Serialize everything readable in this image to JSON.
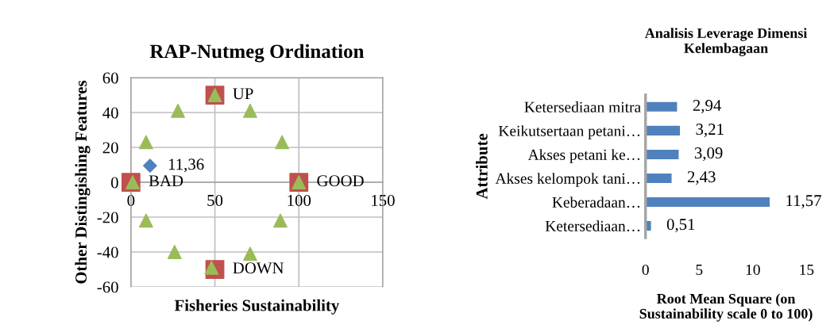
{
  "chart_data": [
    {
      "type": "scatter",
      "title": "RAP-Nutmeg Ordination",
      "xlabel": "Fisheries Sustainability",
      "ylabel": "Other Distingishing Features",
      "xlim": [
        0,
        150
      ],
      "xticks": [
        0,
        50,
        100,
        150
      ],
      "ylim": [
        -60,
        60
      ],
      "yticks": [
        -60,
        -40,
        -20,
        0,
        20,
        40,
        60
      ],
      "grid": true,
      "series": [
        {
          "color": "#c0504d",
          "marker": "square",
          "x": [
            0,
            100,
            50,
            50
          ],
          "values": [
            0,
            0,
            50,
            -50
          ]
        },
        {
          "color": "#9bbb59",
          "marker": "triangle",
          "x": [
            50,
            71,
            90,
            100,
            89,
            71,
            48,
            26,
            9,
            1,
            9,
            28
          ],
          "values": [
            50,
            41,
            23,
            0,
            -22,
            -41,
            -49,
            -40,
            -22,
            0,
            23,
            41
          ]
        },
        {
          "color": "#4f81bd",
          "marker": "diamond",
          "x": [
            11.36
          ],
          "values": [
            9.5
          ]
        }
      ],
      "annotations": [
        {
          "text": "11,36",
          "x": 11.36,
          "y": 9.5
        },
        {
          "text": "UP",
          "x": 50,
          "y": 50
        },
        {
          "text": "GOOD",
          "x": 100,
          "y": 0
        },
        {
          "text": "DOWN",
          "x": 50,
          "y": -50
        },
        {
          "text": "BAD",
          "x": 0,
          "y": 0
        }
      ]
    },
    {
      "type": "bar",
      "orientation": "horizontal",
      "title": "Analisis Leverage Dimensi Kelembagaan",
      "xlabel": "Root Mean Square (on Sustainability scale 0 to 100)",
      "ylabel": "Attribute",
      "categories": [
        "Ketersediaan mitra",
        "Keikutsertaan petani…",
        "Akses petani ke…",
        "Akses kelompok tani…",
        "Keberadaan…",
        "Ketersediaan…"
      ],
      "values": [
        2.94,
        3.21,
        3.09,
        2.43,
        11.57,
        0.51
      ],
      "value_labels": [
        "2,94",
        "3,21",
        "3,09",
        "2,43",
        "11,57",
        "0,51"
      ],
      "color": "#4f81bd",
      "xlim": [
        0,
        15
      ],
      "xticks": [
        0,
        5,
        10,
        15
      ],
      "grid": false
    }
  ]
}
